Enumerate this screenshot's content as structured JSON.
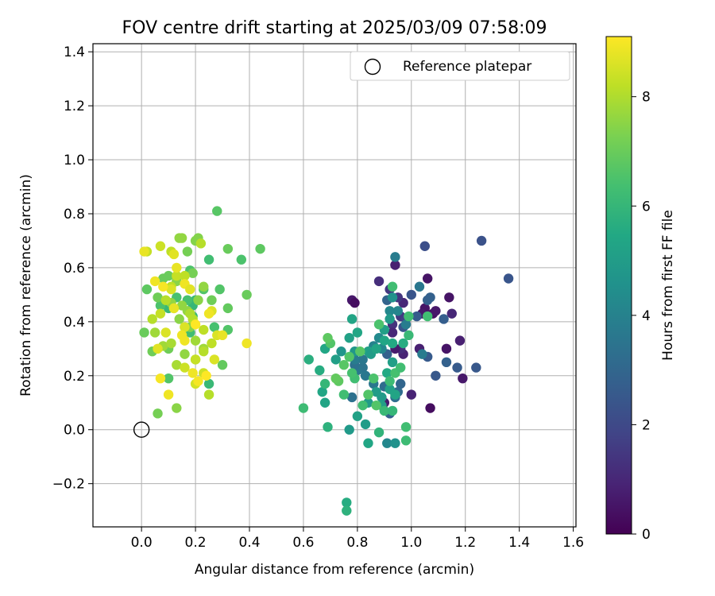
{
  "chart_data": {
    "type": "scatter",
    "title": "FOV centre drift starting at 2025/03/09 07:58:09",
    "xlabel": "Angular distance from reference (arcmin)",
    "ylabel": "Rotation from reference (arcmin)",
    "xlim": [
      -0.18,
      1.61
    ],
    "ylim": [
      -0.36,
      1.43
    ],
    "xticks": [
      "0.0",
      "0.2",
      "0.4",
      "0.6",
      "0.8",
      "1.0",
      "1.2",
      "1.4",
      "1.6"
    ],
    "yticks": [
      "−0.2",
      "0.0",
      "0.2",
      "0.4",
      "0.6",
      "0.8",
      "1.0",
      "1.2",
      "1.4"
    ],
    "grid": true,
    "legend": {
      "position": "top-right",
      "label": "Reference platepar"
    },
    "reference_point": {
      "x": 0.0,
      "y": 0.0,
      "marker": "open-circle"
    },
    "colorbar": {
      "label": "Hours from first FF file",
      "range": [
        0,
        9.1
      ],
      "ticks": [
        "0",
        "2",
        "4",
        "6",
        "8"
      ],
      "colormap": "viridis"
    },
    "series": [
      {
        "points": [
          [
            0.78,
            0.48,
            0.6
          ],
          [
            0.79,
            0.47,
            0.3
          ],
          [
            0.94,
            0.61,
            0.8
          ],
          [
            1.06,
            0.56,
            0.5
          ],
          [
            1.05,
            0.45,
            0.5
          ],
          [
            1.04,
            0.43,
            0.6
          ],
          [
            1.08,
            0.43,
            0.4
          ],
          [
            1.09,
            0.44,
            0.6
          ],
          [
            1.14,
            0.49,
            0.5
          ],
          [
            1.15,
            0.43,
            1.0
          ],
          [
            0.97,
            0.47,
            1.0
          ],
          [
            0.95,
            0.49,
            1.4
          ],
          [
            0.88,
            0.55,
            1.2
          ],
          [
            1.13,
            0.3,
            0.5
          ],
          [
            1.18,
            0.33,
            0.8
          ],
          [
            1.19,
            0.19,
            0.6
          ],
          [
            1.07,
            0.08,
            0.3
          ],
          [
            0.97,
            0.28,
            0.9
          ],
          [
            1.03,
            0.3,
            0.8
          ],
          [
            1.0,
            0.13,
            0.9
          ],
          [
            0.93,
            0.39,
            1.3
          ],
          [
            0.96,
            0.42,
            1.5
          ],
          [
            0.98,
            0.41,
            1.7
          ],
          [
            0.92,
            0.52,
            1.5
          ],
          [
            0.96,
            0.3,
            1.2
          ],
          [
            0.94,
            0.3,
            0.7
          ],
          [
            0.9,
            0.1,
            0.7
          ],
          [
            0.93,
            0.36,
            1.0
          ],
          [
            1.05,
            0.68,
            2.2
          ],
          [
            1.26,
            0.7,
            2.3
          ],
          [
            1.36,
            0.56,
            2.4
          ],
          [
            0.97,
            0.38,
            2.4
          ],
          [
            1.0,
            0.5,
            2.4
          ],
          [
            1.02,
            0.42,
            2.6
          ],
          [
            1.06,
            0.48,
            2.8
          ],
          [
            1.07,
            0.49,
            2.8
          ],
          [
            1.12,
            0.41,
            2.7
          ],
          [
            1.06,
            0.27,
            2.6
          ],
          [
            1.09,
            0.2,
            2.5
          ],
          [
            1.13,
            0.25,
            2.8
          ],
          [
            1.17,
            0.23,
            2.6
          ],
          [
            1.24,
            0.23,
            2.5
          ],
          [
            0.91,
            0.28,
            2.8
          ],
          [
            0.89,
            0.3,
            2.7
          ],
          [
            0.91,
            0.48,
            2.9
          ],
          [
            0.92,
            0.06,
            2.8
          ],
          [
            0.95,
            0.14,
            3.2
          ],
          [
            0.96,
            0.17,
            3.0
          ],
          [
            0.94,
            0.12,
            3.3
          ],
          [
            0.9,
            0.16,
            3.2
          ],
          [
            0.82,
            0.23,
            3.5
          ],
          [
            0.86,
            0.17,
            3.6
          ],
          [
            0.83,
            0.2,
            3.6
          ],
          [
            0.8,
            0.22,
            3.6
          ],
          [
            0.78,
            0.12,
            3.4
          ],
          [
            0.79,
            0.24,
            3.4
          ],
          [
            0.91,
            -0.05,
            4.2
          ],
          [
            0.94,
            -0.05,
            4.6
          ],
          [
            0.82,
            0.26,
            3.6
          ],
          [
            0.79,
            0.26,
            3.8
          ],
          [
            0.86,
            0.31,
            4.0
          ],
          [
            0.88,
            0.34,
            4.3
          ],
          [
            0.89,
            0.3,
            4.2
          ],
          [
            1.04,
            0.28,
            3.8
          ],
          [
            0.94,
            0.64,
            3.8
          ],
          [
            1.03,
            0.53,
            3.6
          ],
          [
            0.98,
            0.39,
            3.8
          ],
          [
            0.92,
            0.44,
            4.2
          ],
          [
            0.95,
            0.44,
            4.1
          ],
          [
            0.93,
            0.49,
            4.6
          ],
          [
            0.92,
            0.41,
            4.9
          ],
          [
            0.9,
            0.37,
            5.1
          ],
          [
            0.84,
            0.29,
            5.2
          ],
          [
            0.85,
            0.28,
            5.0
          ],
          [
            0.87,
            0.3,
            5.3
          ],
          [
            0.9,
            0.33,
            5.4
          ],
          [
            0.93,
            0.32,
            5.5
          ],
          [
            0.97,
            0.32,
            5.6
          ],
          [
            0.93,
            0.25,
            5.1
          ],
          [
            0.91,
            0.21,
            5.5
          ],
          [
            0.92,
            0.15,
            5.2
          ],
          [
            0.94,
            0.13,
            5.3
          ],
          [
            0.89,
            0.12,
            4.9
          ],
          [
            0.87,
            0.14,
            5.0
          ],
          [
            0.89,
            0.09,
            5.1
          ],
          [
            0.84,
            0.1,
            4.9
          ],
          [
            0.83,
            0.02,
            5.0
          ],
          [
            0.8,
            0.05,
            5.2
          ],
          [
            0.77,
            0.0,
            4.9
          ],
          [
            0.79,
            0.29,
            4.8
          ],
          [
            0.74,
            0.29,
            4.7
          ],
          [
            0.77,
            0.34,
            5.2
          ],
          [
            0.78,
            0.41,
            5.3
          ],
          [
            0.8,
            0.36,
            5.4
          ],
          [
            0.72,
            0.26,
            5.1
          ],
          [
            0.68,
            0.3,
            5.4
          ],
          [
            0.68,
            0.1,
            5.3
          ],
          [
            0.67,
            0.14,
            5.4
          ],
          [
            0.66,
            0.22,
            5.6
          ],
          [
            0.62,
            0.26,
            5.7
          ],
          [
            0.6,
            0.08,
            6.2
          ],
          [
            0.68,
            0.17,
            6.0
          ],
          [
            0.69,
            0.01,
            5.8
          ],
          [
            0.76,
            -0.27,
            5.6
          ],
          [
            0.76,
            -0.3,
            5.8
          ],
          [
            0.84,
            -0.05,
            5.4
          ],
          [
            0.88,
            -0.01,
            5.9
          ],
          [
            0.9,
            0.07,
            6.1
          ],
          [
            0.93,
            0.07,
            6.0
          ],
          [
            0.98,
            0.01,
            6.3
          ],
          [
            0.98,
            -0.04,
            6.2
          ],
          [
            0.92,
            0.18,
            6.2
          ],
          [
            0.94,
            0.21,
            6.4
          ],
          [
            0.96,
            0.23,
            6.3
          ],
          [
            0.99,
            0.35,
            6.1
          ],
          [
            0.99,
            0.42,
            6.3
          ],
          [
            1.06,
            0.42,
            6.3
          ],
          [
            0.93,
            0.53,
            6.3
          ],
          [
            0.88,
            0.39,
            6.5
          ],
          [
            0.86,
            0.19,
            6.5
          ],
          [
            0.84,
            0.13,
            6.6
          ],
          [
            0.87,
            0.09,
            6.6
          ],
          [
            0.82,
            0.09,
            6.3
          ],
          [
            0.79,
            0.19,
            6.3
          ],
          [
            0.78,
            0.21,
            6.4
          ],
          [
            0.81,
            0.29,
            6.7
          ],
          [
            0.77,
            0.27,
            6.6
          ],
          [
            0.75,
            0.24,
            6.7
          ],
          [
            0.73,
            0.18,
            6.8
          ],
          [
            0.72,
            0.19,
            6.9
          ],
          [
            0.7,
            0.32,
            6.6
          ],
          [
            0.69,
            0.34,
            6.8
          ],
          [
            0.75,
            0.13,
            6.3
          ],
          [
            0.28,
            0.81,
            6.7
          ],
          [
            0.44,
            0.67,
            6.8
          ],
          [
            0.32,
            0.67,
            7.0
          ],
          [
            0.37,
            0.63,
            6.5
          ],
          [
            0.39,
            0.5,
            7.0
          ],
          [
            0.32,
            0.45,
            6.9
          ],
          [
            0.29,
            0.52,
            6.6
          ],
          [
            0.26,
            0.48,
            7.1
          ],
          [
            0.27,
            0.38,
            6.4
          ],
          [
            0.3,
            0.24,
            6.9
          ],
          [
            0.25,
            0.17,
            6.1
          ],
          [
            0.32,
            0.37,
            6.6
          ],
          [
            0.25,
            0.63,
            6.3
          ],
          [
            0.23,
            0.52,
            6.6
          ],
          [
            0.2,
            0.48,
            6.1
          ],
          [
            0.19,
            0.46,
            6.0
          ],
          [
            0.17,
            0.48,
            6.4
          ],
          [
            0.19,
            0.42,
            6.1
          ],
          [
            0.18,
            0.36,
            6.3
          ],
          [
            0.13,
            0.49,
            6.4
          ],
          [
            0.1,
            0.45,
            6.1
          ],
          [
            0.07,
            0.46,
            6.5
          ],
          [
            0.08,
            0.56,
            7.0
          ],
          [
            0.1,
            0.57,
            7.0
          ],
          [
            0.06,
            0.49,
            7.1
          ],
          [
            0.02,
            0.52,
            6.8
          ],
          [
            0.01,
            0.36,
            7.0
          ],
          [
            0.04,
            0.29,
            7.1
          ],
          [
            0.1,
            0.3,
            7.1
          ],
          [
            0.1,
            0.19,
            6.6
          ],
          [
            0.06,
            0.06,
            7.2
          ],
          [
            0.13,
            0.08,
            7.5
          ],
          [
            0.18,
            0.59,
            6.5
          ],
          [
            0.19,
            0.58,
            7.2
          ],
          [
            0.2,
            0.7,
            7.4
          ],
          [
            0.21,
            0.71,
            7.4
          ],
          [
            0.17,
            0.66,
            7.2
          ],
          [
            0.14,
            0.71,
            7.6
          ],
          [
            0.15,
            0.71,
            7.6
          ],
          [
            0.13,
            0.55,
            7.5
          ],
          [
            0.11,
            0.47,
            7.6
          ],
          [
            0.12,
            0.45,
            7.7
          ],
          [
            0.15,
            0.46,
            7.6
          ],
          [
            0.17,
            0.44,
            7.6
          ],
          [
            0.21,
            0.48,
            7.5
          ],
          [
            0.23,
            0.53,
            7.6
          ],
          [
            0.14,
            0.41,
            7.5
          ],
          [
            0.16,
            0.38,
            7.7
          ],
          [
            0.18,
            0.38,
            7.4
          ],
          [
            0.2,
            0.33,
            7.8
          ],
          [
            0.23,
            0.3,
            7.8
          ],
          [
            0.2,
            0.26,
            7.8
          ],
          [
            0.16,
            0.28,
            7.6
          ],
          [
            0.13,
            0.24,
            7.9
          ],
          [
            0.08,
            0.31,
            7.8
          ],
          [
            0.11,
            0.32,
            7.9
          ],
          [
            0.05,
            0.36,
            7.8
          ],
          [
            0.04,
            0.41,
            8.1
          ],
          [
            0.07,
            0.43,
            8.3
          ],
          [
            0.09,
            0.48,
            8.1
          ],
          [
            0.11,
            0.53,
            8.2
          ],
          [
            0.13,
            0.57,
            8.3
          ],
          [
            0.16,
            0.57,
            8.2
          ],
          [
            0.18,
            0.43,
            8.0
          ],
          [
            0.19,
            0.41,
            8.1
          ],
          [
            0.23,
            0.37,
            8.2
          ],
          [
            0.26,
            0.32,
            8.2
          ],
          [
            0.23,
            0.29,
            8.1
          ],
          [
            0.2,
            0.26,
            8.3
          ],
          [
            0.16,
            0.23,
            8.4
          ],
          [
            0.23,
            0.21,
            8.4
          ],
          [
            0.2,
            0.17,
            8.5
          ],
          [
            0.25,
            0.13,
            8.1
          ],
          [
            0.27,
            0.26,
            8.6
          ],
          [
            0.28,
            0.35,
            8.6
          ],
          [
            0.26,
            0.44,
            8.6
          ],
          [
            0.3,
            0.35,
            8.8
          ],
          [
            0.39,
            0.32,
            8.9
          ],
          [
            0.22,
            0.69,
            8.1
          ],
          [
            0.07,
            0.68,
            8.4
          ],
          [
            0.11,
            0.66,
            8.2
          ],
          [
            0.02,
            0.66,
            8.3
          ],
          [
            0.01,
            0.66,
            8.8
          ],
          [
            0.13,
            0.6,
            8.8
          ],
          [
            0.16,
            0.54,
            8.9
          ],
          [
            0.11,
            0.52,
            8.6
          ],
          [
            0.08,
            0.53,
            9.0
          ],
          [
            0.05,
            0.55,
            8.9
          ],
          [
            0.12,
            0.45,
            8.8
          ],
          [
            0.09,
            0.36,
            8.6
          ],
          [
            0.06,
            0.3,
            8.7
          ],
          [
            0.1,
            0.13,
            8.9
          ],
          [
            0.07,
            0.19,
            9.0
          ],
          [
            0.16,
            0.33,
            8.9
          ],
          [
            0.19,
            0.21,
            8.9
          ],
          [
            0.21,
            0.18,
            9.0
          ],
          [
            0.24,
            0.2,
            9.1
          ],
          [
            0.2,
            0.39,
            9.1
          ],
          [
            0.16,
            0.38,
            8.6
          ],
          [
            0.15,
            0.35,
            8.9
          ],
          [
            0.18,
            0.52,
            8.7
          ],
          [
            0.12,
            0.65,
            8.7
          ],
          [
            0.25,
            0.43,
            8.9
          ]
        ]
      }
    ]
  }
}
